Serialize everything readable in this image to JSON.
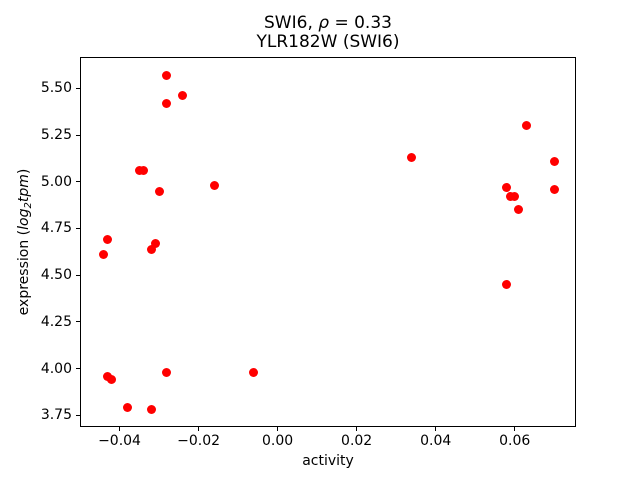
{
  "header": {
    "title_prefix": "SWI6, ",
    "title_rho": "ρ",
    "title_suffix": " = 0.33",
    "subtitle": "YLR182W (SWI6)"
  },
  "axes": {
    "xlabel": "activity",
    "ylabel_prefix": "expression (",
    "ylabel_log": "log",
    "ylabel_sub": "2",
    "ylabel_tpm": "tpm",
    "ylabel_suffix": ")"
  },
  "chart_data": {
    "type": "scatter",
    "title": "SWI6, ρ = 0.33",
    "subtitle": "YLR182W (SWI6)",
    "xlabel": "activity",
    "ylabel": "expression (log2tpm)",
    "marker_color": "#ff0000",
    "marker_size_px": 9,
    "grid": false,
    "legend": null,
    "xlim": [
      -0.05,
      0.0755
    ],
    "ylim": [
      3.685,
      5.665
    ],
    "x_ticks": [
      {
        "v": -0.04,
        "label": "−0.04"
      },
      {
        "v": -0.02,
        "label": "−0.02"
      },
      {
        "v": 0.0,
        "label": "0.00"
      },
      {
        "v": 0.02,
        "label": "0.02"
      },
      {
        "v": 0.04,
        "label": "0.04"
      },
      {
        "v": 0.06,
        "label": "0.06"
      }
    ],
    "y_ticks": [
      {
        "v": 3.75,
        "label": "3.75"
      },
      {
        "v": 4.0,
        "label": "4.00"
      },
      {
        "v": 4.25,
        "label": "4.25"
      },
      {
        "v": 4.5,
        "label": "4.50"
      },
      {
        "v": 4.75,
        "label": "4.75"
      },
      {
        "v": 5.0,
        "label": "5.00"
      },
      {
        "v": 5.25,
        "label": "5.25"
      },
      {
        "v": 5.5,
        "label": "5.50"
      }
    ],
    "points": [
      [
        -0.028,
        5.57
      ],
      [
        -0.024,
        5.46
      ],
      [
        -0.028,
        5.42
      ],
      [
        -0.035,
        5.06
      ],
      [
        -0.034,
        5.06
      ],
      [
        -0.03,
        4.95
      ],
      [
        -0.016,
        4.98
      ],
      [
        -0.043,
        4.69
      ],
      [
        -0.044,
        4.61
      ],
      [
        -0.031,
        4.67
      ],
      [
        -0.032,
        4.64
      ],
      [
        -0.043,
        3.96
      ],
      [
        -0.042,
        3.94
      ],
      [
        -0.028,
        3.98
      ],
      [
        -0.006,
        3.98
      ],
      [
        -0.038,
        3.79
      ],
      [
        -0.032,
        3.78
      ],
      [
        0.034,
        5.13
      ],
      [
        0.063,
        5.3
      ],
      [
        0.07,
        5.11
      ],
      [
        0.07,
        4.96
      ],
      [
        0.058,
        4.97
      ],
      [
        0.059,
        4.92
      ],
      [
        0.06,
        4.92
      ],
      [
        0.061,
        4.85
      ],
      [
        0.058,
        4.45
      ]
    ]
  }
}
